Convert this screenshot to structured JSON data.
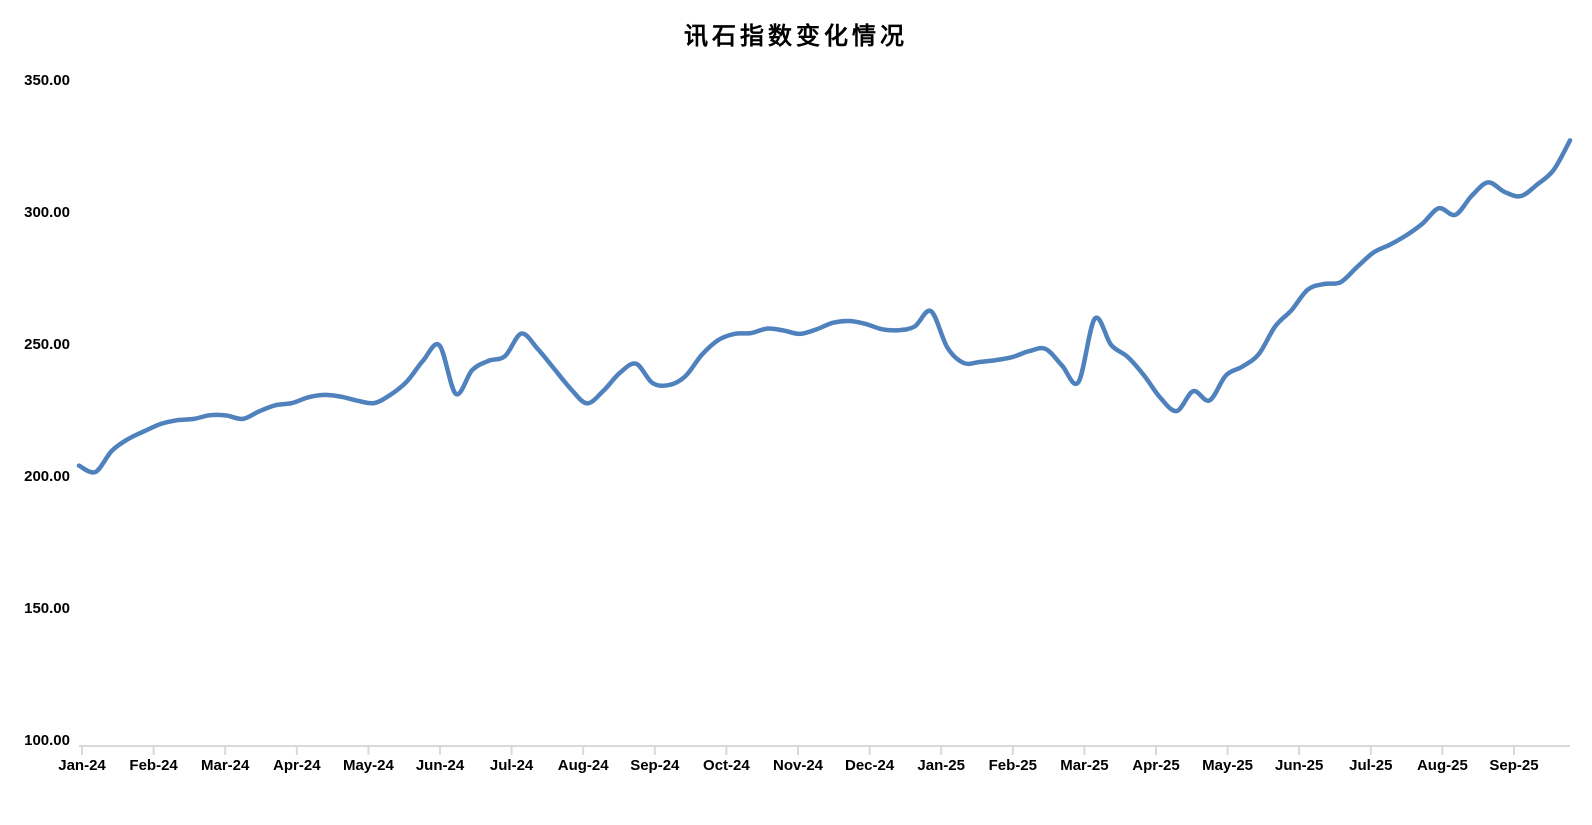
{
  "chart_data": {
    "type": "line",
    "title": "讯石指数变化情况",
    "grid": false,
    "legend_position": "none",
    "background_color": "#ffffff",
    "line_color": "#4F81BD",
    "axis_color": "#D9D9D9",
    "label_color": "#000000",
    "smooth": true,
    "ylim": [
      100,
      350
    ],
    "y_tick_values": [
      350,
      300,
      250,
      200,
      150,
      100
    ],
    "y_tick_labels": [
      "350.00",
      "300.00",
      "250.00",
      "200.00",
      "150.00",
      "100.00"
    ],
    "x_tick_labels": [
      "Jan-24",
      "Feb-24",
      "Mar-24",
      "Apr-24",
      "May-24",
      "Jun-24",
      "Jul-24",
      "Aug-24",
      "Sep-24",
      "Oct-24",
      "Nov-24",
      "Dec-24",
      "Jan-25",
      "Feb-25",
      "Mar-25",
      "Apr-25",
      "May-25",
      "Jun-25",
      "Jul-25",
      "Aug-25",
      "Sep-25"
    ],
    "x_unit": "weekly points spanning Jan-2024 to end of Sep-2025",
    "series": [
      {
        "name": "讯石指数",
        "values": [
          204.3,
          201.9,
          209.9,
          214.4,
          217.4,
          220.1,
          221.5,
          222.0,
          223.4,
          223.3,
          222.0,
          224.9,
          227.2,
          228.0,
          230.2,
          231.1,
          230.4,
          228.9,
          228.0,
          231.1,
          236.1,
          244.1,
          249.8,
          231.5,
          240.5,
          244.0,
          245.8,
          254.3,
          248.5,
          241.0,
          233.5,
          227.9,
          232.6,
          239.4,
          242.9,
          235.6,
          234.8,
          238.1,
          246.2,
          251.8,
          254.2,
          254.5,
          256.2,
          255.5,
          254.2,
          255.9,
          258.4,
          259.1,
          258.0,
          256.0,
          255.6,
          257.0,
          262.8,
          249.0,
          243.2,
          243.6,
          244.3,
          245.5,
          247.7,
          248.5,
          242.2,
          236.0,
          260.0,
          250.0,
          245.5,
          238.5,
          230.0,
          225.0,
          232.5,
          229.0,
          238.5,
          241.8,
          246.5,
          257.0,
          263.2,
          271.0,
          273.1,
          273.8,
          279.5,
          285.0,
          288.0,
          291.5,
          296.0,
          301.8,
          299.3,
          306.5,
          311.6,
          308.0,
          306.4,
          310.8,
          316.3,
          327.5
        ]
      }
    ]
  }
}
